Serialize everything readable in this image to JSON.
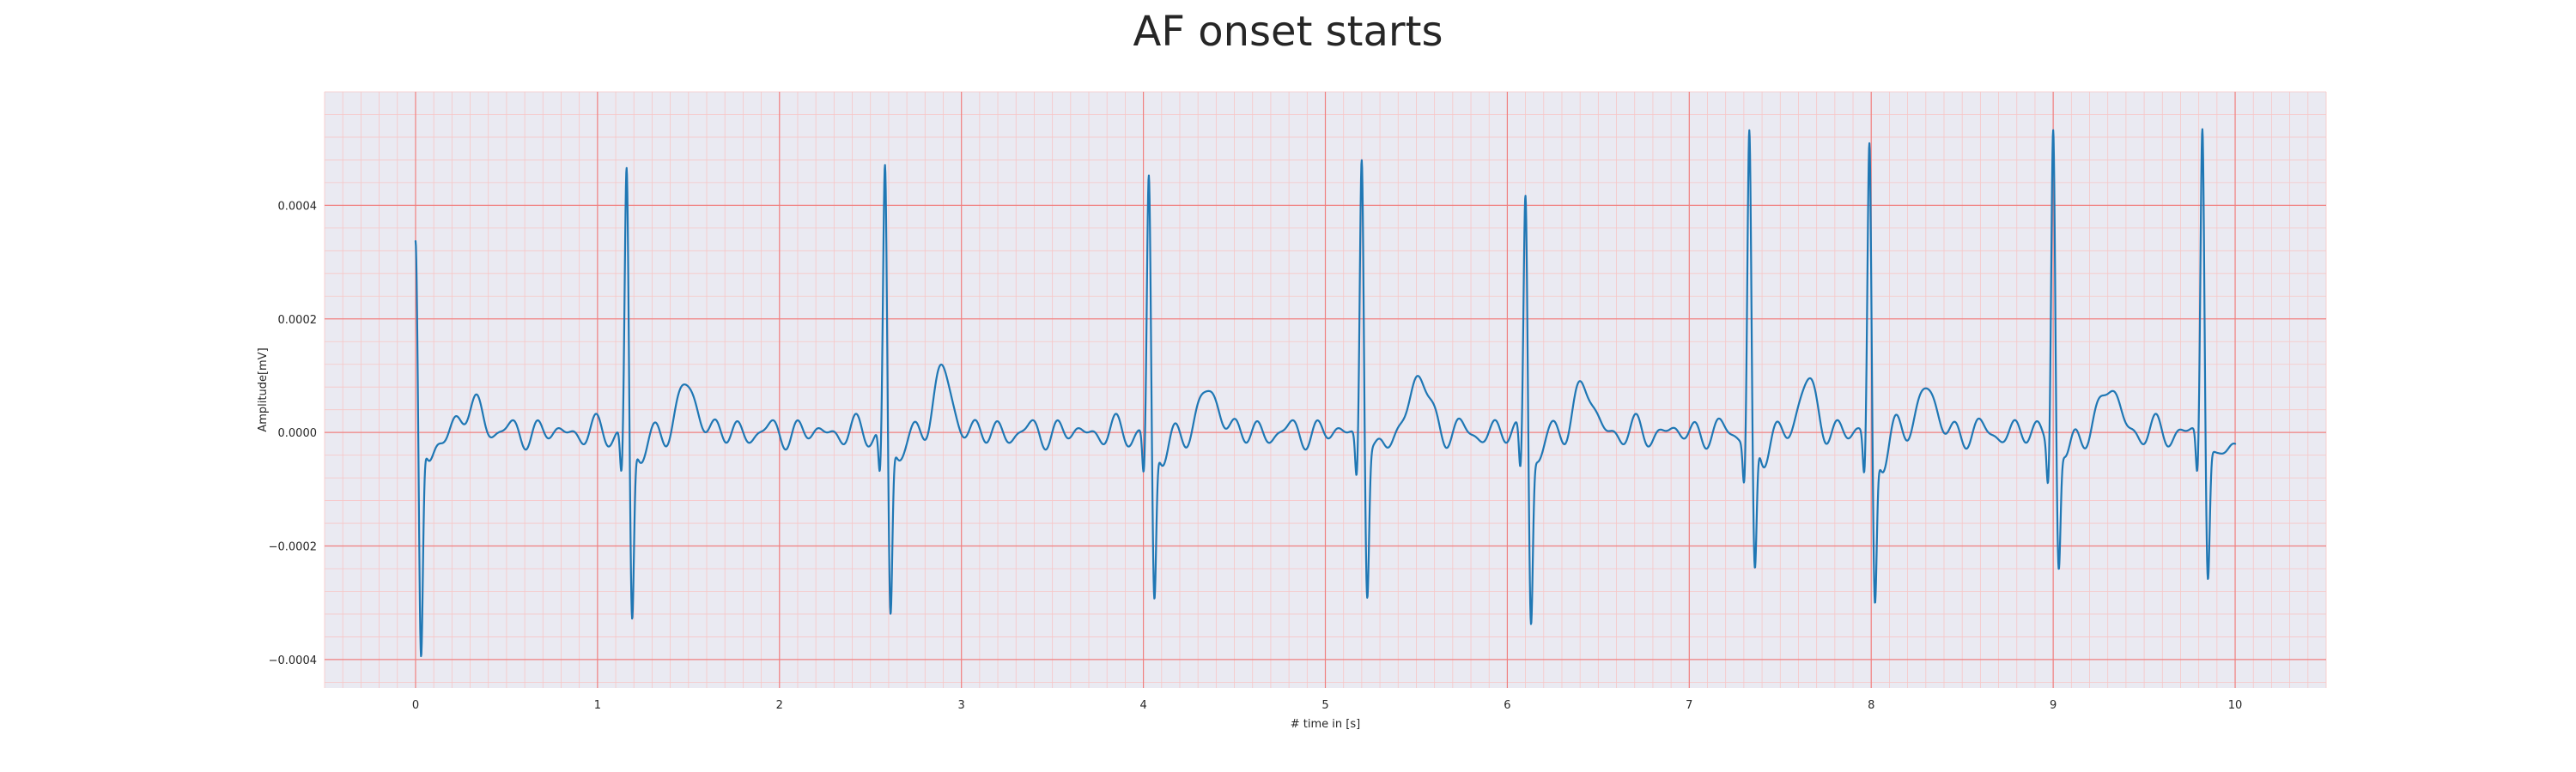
{
  "chart_data": {
    "type": "line",
    "title": "AF onset starts",
    "xlabel": "# time in [s]",
    "ylabel": "Amplitude[mV]",
    "xlim": [
      -0.5,
      10.5
    ],
    "ylim": [
      -0.00045,
      0.0006
    ],
    "xticks": [
      0,
      1,
      2,
      3,
      4,
      5,
      6,
      7,
      8,
      9,
      10
    ],
    "xtick_labels": [
      "0",
      "1",
      "2",
      "3",
      "4",
      "5",
      "6",
      "7",
      "8",
      "9",
      "10"
    ],
    "yticks": [
      0.0004,
      0.0002,
      0.0,
      -0.0002,
      -0.0004
    ],
    "ytick_labels": [
      "0.0004",
      "0.0002",
      "0.0000",
      "−0.0002",
      "−0.0004"
    ],
    "grid": true,
    "minor_grid": true,
    "colors": {
      "line": "#1f77b4",
      "plot_background": "#eaeaf2",
      "major_grid": "#f08080",
      "minor_grid": "#f7c6c6",
      "text": "#262626"
    },
    "series": [
      {
        "qrs": [
          {
            "t": 0.0,
            "r": 0.00033,
            "s": -0.0004
          },
          {
            "t": 1.16,
            "r": 0.00047,
            "s": -0.00032
          },
          {
            "t": 2.58,
            "r": 0.000475,
            "s": -0.00031
          },
          {
            "t": 4.03,
            "r": 0.000455,
            "s": -0.000285
          },
          {
            "t": 5.2,
            "r": 0.000505,
            "s": -0.000265
          },
          {
            "t": 6.1,
            "r": 0.000435,
            "s": -0.000305
          },
          {
            "t": 7.33,
            "r": 0.000535,
            "s": -0.000245
          },
          {
            "t": 7.99,
            "r": 0.000515,
            "s": -0.000285
          },
          {
            "t": 9.0,
            "r": 0.00055,
            "s": -0.000225
          },
          {
            "t": 9.82,
            "r": 0.00055,
            "s": -0.00024
          }
        ],
        "t_waves": [
          {
            "t": 0.32,
            "a": 5e-05
          },
          {
            "t": 1.5,
            "a": 8e-05
          },
          {
            "t": 2.9,
            "a": 0.0001
          },
          {
            "t": 4.37,
            "a": 7.5e-05
          },
          {
            "t": 5.52,
            "a": 0.0001
          },
          {
            "t": 6.42,
            "a": 8e-05
          },
          {
            "t": 7.65,
            "a": 8e-05
          },
          {
            "t": 8.3,
            "a": 7.5e-05
          },
          {
            "t": 9.31,
            "a": 8e-05
          },
          {
            "t": 9.98,
            "a": -2e-05
          }
        ],
        "fibrillatory_wave_amplitude": 1.5e-05,
        "x_end": 10.0,
        "y_end": -2e-05
      }
    ]
  }
}
